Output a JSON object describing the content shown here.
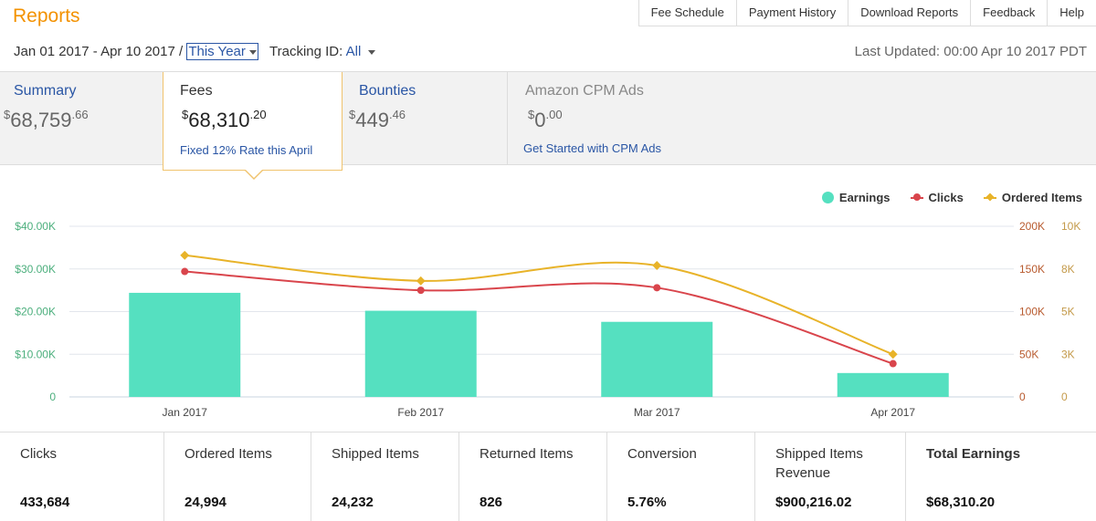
{
  "header": {
    "title": "Reports",
    "nav": [
      "Fee Schedule",
      "Payment History",
      "Download Reports",
      "Feedback",
      "Help"
    ]
  },
  "filters": {
    "date_range": "Jan 01 2017 - Apr 10 2017 /",
    "period_selected": "This Year",
    "tracking_label": "Tracking ID:",
    "tracking_value": "All",
    "last_updated": "Last Updated: 00:00 Apr 10 2017 PDT"
  },
  "tabs": {
    "summary": {
      "label": "Summary",
      "currency": "$",
      "amount": "68,759",
      "cents": ".66"
    },
    "fees": {
      "label": "Fees",
      "currency": "$",
      "amount": "68,310",
      "cents": ".20",
      "link": "Fixed 12% Rate this April"
    },
    "bounties": {
      "label": "Bounties",
      "currency": "$",
      "amount": "449",
      "cents": ".46"
    },
    "cpm": {
      "label": "Amazon CPM Ads",
      "currency": "$",
      "amount": "0",
      "cents": ".00",
      "link": "Get Started with CPM Ads"
    }
  },
  "chart_data": {
    "type": "bar",
    "categories": [
      "Jan 2017",
      "Feb 2017",
      "Mar 2017",
      "Apr 2017"
    ],
    "series": [
      {
        "name": "Earnings",
        "chart": "bar",
        "axis": "left",
        "color": "#55e0c0",
        "values": [
          24400,
          20200,
          17600,
          5600
        ]
      },
      {
        "name": "Clicks",
        "chart": "line",
        "axis": "right1",
        "color": "#d9454c",
        "values": [
          147000,
          125000,
          128000,
          39000
        ]
      },
      {
        "name": "Ordered Items",
        "chart": "line",
        "axis": "right2",
        "color": "#e8b329",
        "values": [
          8300,
          6800,
          7700,
          2500
        ]
      }
    ],
    "axes": {
      "left": {
        "ticks": [
          "0",
          "$10.00K",
          "$20.00K",
          "$30.00K",
          "$40.00K"
        ],
        "max": 40000,
        "color": "#4caf7d"
      },
      "right1": {
        "ticks": [
          "0",
          "50K",
          "100K",
          "150K",
          "200K"
        ],
        "max": 200000,
        "color": "#b85a2e"
      },
      "right2": {
        "ticks": [
          "0",
          "3K",
          "5K",
          "8K",
          "10K"
        ],
        "max": 10000,
        "color": "#c49a4a"
      }
    },
    "grid": true,
    "legend_position": "top-right"
  },
  "stats": [
    {
      "label": "Clicks",
      "value": "433,684"
    },
    {
      "label": "Ordered Items",
      "value": "24,994"
    },
    {
      "label": "Shipped Items",
      "value": "24,232"
    },
    {
      "label": "Returned Items",
      "value": "826"
    },
    {
      "label": "Conversion",
      "value": "5.76%"
    },
    {
      "label": "Shipped Items Revenue",
      "value": "$900,216.02"
    },
    {
      "label": "Total Earnings",
      "value": "$68,310.20"
    }
  ]
}
